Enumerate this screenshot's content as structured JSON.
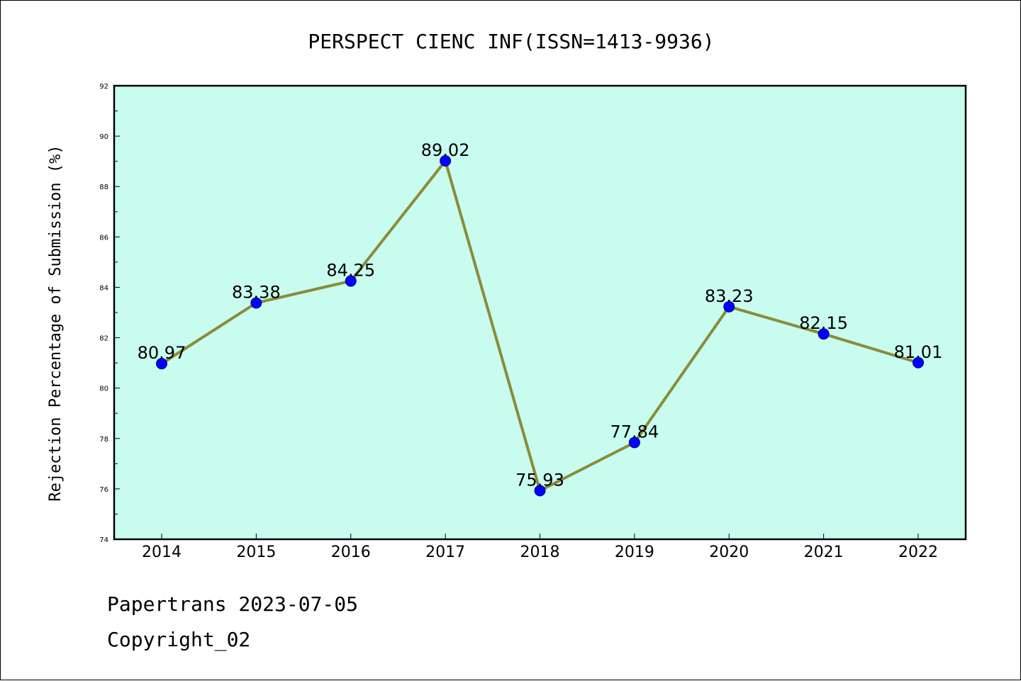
{
  "chart_data": {
    "type": "line",
    "title": "PERSPECT CIENC INF(ISSN=1413-9936)",
    "xlabel": "",
    "ylabel": "Rejection Percentage of Submission (%)",
    "categories": [
      "2014",
      "2015",
      "2016",
      "2017",
      "2018",
      "2019",
      "2020",
      "2021",
      "2022"
    ],
    "values": [
      80.97,
      83.38,
      84.25,
      89.02,
      75.93,
      77.84,
      83.23,
      82.15,
      81.01
    ],
    "value_labels": [
      "80.97",
      "83.38",
      "84.25",
      "89.02",
      "75.93",
      "77.84",
      "83.23",
      "82.15",
      "81.01"
    ],
    "ylim": [
      74,
      92
    ],
    "yticks": [
      74,
      76,
      78,
      80,
      82,
      84,
      86,
      88,
      90,
      92
    ],
    "ytick_labels": [
      "74",
      "76",
      "78",
      "80",
      "82",
      "84",
      "86",
      "88",
      "90",
      "92"
    ],
    "grid": false,
    "legend": "none",
    "colors": {
      "plot_background": "#c8fcee",
      "line": "#8b8b3a",
      "marker": "#0000ff",
      "marker_edge": "#00008b"
    }
  },
  "footer": {
    "line1": "Papertrans 2023-07-05",
    "line2": "Copyright_02"
  }
}
